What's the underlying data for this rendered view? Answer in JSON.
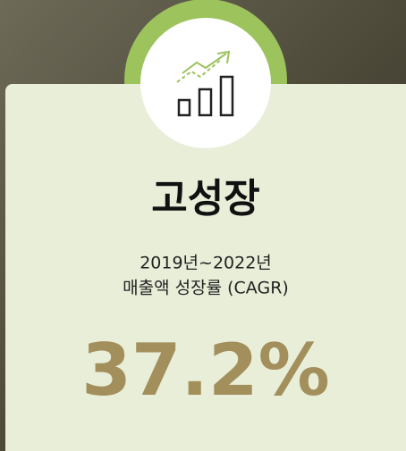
{
  "card": {
    "title": "고성장",
    "period": "2019년~2022년",
    "description": "매출액 성장률 (CAGR)",
    "value": "37.2%"
  }
}
